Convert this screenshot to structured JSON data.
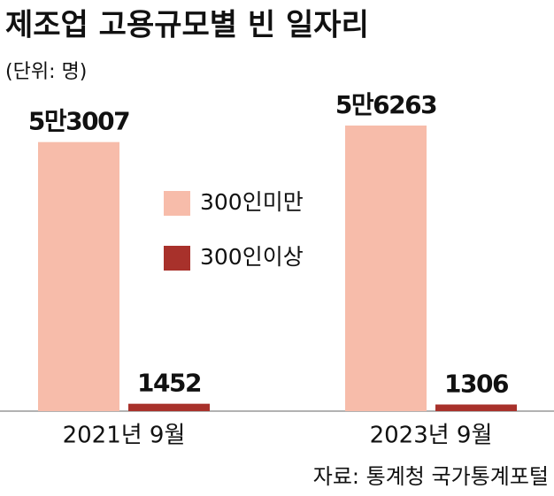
{
  "chart_data": {
    "type": "bar",
    "title": "제조업 고용규모별 빈 일자리",
    "subtitle": "(단위: 명)",
    "source": "자료: 통계청 국가통계포털",
    "categories": [
      "2021년 9월",
      "2023년 9월"
    ],
    "series": [
      {
        "name": "300인미만",
        "color": "#f7bcaa",
        "values": [
          53007,
          56263
        ],
        "value_labels": [
          "5만3007",
          "5만6263"
        ]
      },
      {
        "name": "300인이상",
        "color": "#a8312b",
        "values": [
          1452,
          1306
        ]
      }
    ]
  }
}
